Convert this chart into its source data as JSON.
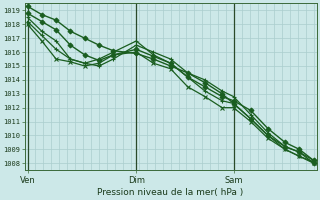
{
  "xlabel": "Pression niveau de la mer( hPa )",
  "ylim": [
    1007.5,
    1019.5
  ],
  "yticks": [
    1008,
    1009,
    1010,
    1011,
    1012,
    1013,
    1014,
    1015,
    1016,
    1017,
    1018,
    1019
  ],
  "bg_color": "#cce8e8",
  "grid_color": "#aacece",
  "line_color": "#1a5e20",
  "vline_color": "#2a4a2a",
  "xtick_labels": [
    "Ven",
    "Dim",
    "Sam"
  ],
  "xtick_positions": [
    0.0,
    0.38,
    0.72
  ],
  "lines": [
    {
      "x": [
        0.0,
        0.05,
        0.1,
        0.15,
        0.2,
        0.25,
        0.3,
        0.38,
        0.44,
        0.5,
        0.56,
        0.62,
        0.68,
        0.72,
        0.78,
        0.84,
        0.9,
        0.95,
        1.0
      ],
      "y": [
        1019.3,
        1018.7,
        1018.3,
        1017.5,
        1017.0,
        1016.5,
        1016.1,
        1015.9,
        1015.5,
        1015.0,
        1014.5,
        1013.8,
        1013.0,
        1012.3,
        1011.2,
        1010.0,
        1009.2,
        1008.8,
        1008.0
      ],
      "marker": "D",
      "ms": 2.5,
      "lw": 1.0
    },
    {
      "x": [
        0.0,
        0.05,
        0.1,
        0.15,
        0.2,
        0.25,
        0.3,
        0.38,
        0.44,
        0.5,
        0.56,
        0.62,
        0.68,
        0.72,
        0.78,
        0.84,
        0.9,
        0.95,
        1.0
      ],
      "y": [
        1018.8,
        1018.2,
        1017.6,
        1016.5,
        1015.8,
        1015.4,
        1015.8,
        1016.2,
        1015.7,
        1015.2,
        1014.2,
        1013.5,
        1012.8,
        1012.5,
        1011.8,
        1010.5,
        1009.5,
        1009.0,
        1008.2
      ],
      "marker": "D",
      "ms": 2.5,
      "lw": 1.0
    },
    {
      "x": [
        0.0,
        0.05,
        0.1,
        0.15,
        0.2,
        0.25,
        0.3,
        0.38,
        0.44,
        0.5,
        0.56,
        0.62,
        0.68,
        0.72,
        0.78,
        0.84,
        0.9,
        0.95,
        1.0
      ],
      "y": [
        1018.5,
        1017.5,
        1016.8,
        1015.5,
        1015.2,
        1015.0,
        1015.5,
        1016.5,
        1016.0,
        1015.5,
        1014.5,
        1014.0,
        1013.2,
        1012.8,
        1011.5,
        1010.2,
        1009.2,
        1008.8,
        1008.2
      ],
      "marker": "+",
      "ms": 3.5,
      "lw": 0.9
    },
    {
      "x": [
        0.0,
        0.05,
        0.1,
        0.15,
        0.2,
        0.25,
        0.3,
        0.38,
        0.44,
        0.5,
        0.56,
        0.62,
        0.68,
        0.72,
        0.78,
        0.84,
        0.9,
        0.95,
        1.0
      ],
      "y": [
        1018.2,
        1017.2,
        1016.2,
        1015.5,
        1015.2,
        1015.5,
        1016.0,
        1016.8,
        1015.8,
        1015.2,
        1014.2,
        1013.2,
        1012.5,
        1012.3,
        1011.2,
        1010.0,
        1009.0,
        1008.5,
        1008.1
      ],
      "marker": "+",
      "ms": 3.5,
      "lw": 0.9
    },
    {
      "x": [
        0.0,
        0.05,
        0.1,
        0.15,
        0.2,
        0.25,
        0.3,
        0.38,
        0.44,
        0.5,
        0.56,
        0.62,
        0.68,
        0.72,
        0.78,
        0.84,
        0.9,
        0.95,
        1.0
      ],
      "y": [
        1018.0,
        1016.8,
        1015.5,
        1015.3,
        1015.0,
        1015.2,
        1015.8,
        1016.0,
        1015.2,
        1014.8,
        1013.5,
        1012.8,
        1012.0,
        1012.0,
        1011.0,
        1009.8,
        1009.0,
        1008.5,
        1008.0
      ],
      "marker": "x",
      "ms": 3,
      "lw": 0.9
    }
  ],
  "vlines": [
    0.0,
    0.38,
    0.72
  ]
}
